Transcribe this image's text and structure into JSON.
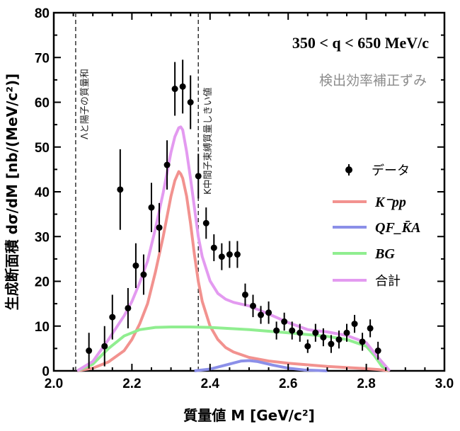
{
  "chart_data": {
    "type": "scatter",
    "title": "",
    "xlabel": "質量値 M [GeV/c²]",
    "ylabel": "生成断面積 dσ/dM [nb/(MeV/c²)]",
    "xlim": [
      2.0,
      3.0
    ],
    "ylim": [
      0,
      80
    ],
    "x_ticks": [
      "2.0",
      "2.2",
      "2.4",
      "2.6",
      "2.8",
      "3.0"
    ],
    "y_ticks": [
      "0",
      "10",
      "20",
      "30",
      "40",
      "50",
      "60",
      "70",
      "80"
    ],
    "grid": false,
    "legend_position": "right",
    "annotations": {
      "range": "350 < q < 650 MeV/c",
      "efficiency_note": "検出効率補正ずみ"
    },
    "vertical_lines": [
      {
        "x": 2.056,
        "label": "Λと陽子の質量和"
      },
      {
        "x": 2.37,
        "label": "K中間子束縛質量しきい値"
      }
    ],
    "series": [
      {
        "name": "データ",
        "kind": "points",
        "color": "#000000",
        "points": [
          {
            "x": 2.09,
            "y": 4.5,
            "err": 4.0
          },
          {
            "x": 2.13,
            "y": 5.5,
            "err": 4.5
          },
          {
            "x": 2.15,
            "y": 12.0,
            "err": 5.0
          },
          {
            "x": 2.17,
            "y": 40.5,
            "err": 9.0
          },
          {
            "x": 2.19,
            "y": 14.0,
            "err": 4.5
          },
          {
            "x": 2.21,
            "y": 23.5,
            "err": 5.0
          },
          {
            "x": 2.23,
            "y": 21.5,
            "err": 4.5
          },
          {
            "x": 2.25,
            "y": 36.5,
            "err": 5.5
          },
          {
            "x": 2.27,
            "y": 32.0,
            "err": 5.5
          },
          {
            "x": 2.29,
            "y": 46.0,
            "err": 5.5
          },
          {
            "x": 2.31,
            "y": 63.0,
            "err": 6.0
          },
          {
            "x": 2.33,
            "y": 63.5,
            "err": 6.0
          },
          {
            "x": 2.35,
            "y": 60.0,
            "err": 6.0
          },
          {
            "x": 2.37,
            "y": 43.5,
            "err": 5.0
          },
          {
            "x": 2.39,
            "y": 33.0,
            "err": 3.5
          },
          {
            "x": 2.41,
            "y": 27.5,
            "err": 3.0
          },
          {
            "x": 2.43,
            "y": 25.5,
            "err": 3.0
          },
          {
            "x": 2.45,
            "y": 26.0,
            "err": 3.0
          },
          {
            "x": 2.47,
            "y": 26.0,
            "err": 3.0
          },
          {
            "x": 2.49,
            "y": 17.0,
            "err": 2.5
          },
          {
            "x": 2.51,
            "y": 14.5,
            "err": 2.5
          },
          {
            "x": 2.53,
            "y": 12.5,
            "err": 2.0
          },
          {
            "x": 2.55,
            "y": 13.0,
            "err": 2.5
          },
          {
            "x": 2.57,
            "y": 9.0,
            "err": 2.0
          },
          {
            "x": 2.59,
            "y": 11.0,
            "err": 2.0
          },
          {
            "x": 2.61,
            "y": 9.0,
            "err": 2.0
          },
          {
            "x": 2.63,
            "y": 8.5,
            "err": 2.0
          },
          {
            "x": 2.65,
            "y": 5.5,
            "err": 1.5
          },
          {
            "x": 2.67,
            "y": 8.5,
            "err": 2.0
          },
          {
            "x": 2.69,
            "y": 7.5,
            "err": 2.0
          },
          {
            "x": 2.71,
            "y": 6.0,
            "err": 2.0
          },
          {
            "x": 2.73,
            "y": 7.0,
            "err": 2.0
          },
          {
            "x": 2.75,
            "y": 8.5,
            "err": 2.0
          },
          {
            "x": 2.77,
            "y": 10.5,
            "err": 2.0
          },
          {
            "x": 2.79,
            "y": 6.5,
            "err": 2.0
          },
          {
            "x": 2.81,
            "y": 9.5,
            "err": 2.0
          },
          {
            "x": 2.83,
            "y": 4.5,
            "err": 2.0
          }
        ]
      },
      {
        "name": "K⁻pp",
        "kind": "line",
        "color": "#f2928f",
        "x": [
          2.06,
          2.1,
          2.14,
          2.18,
          2.2,
          2.22,
          2.24,
          2.26,
          2.28,
          2.3,
          2.31,
          2.32,
          2.325,
          2.33,
          2.34,
          2.35,
          2.36,
          2.37,
          2.38,
          2.4,
          2.42,
          2.44,
          2.46,
          2.5,
          2.55,
          2.6,
          2.7,
          2.78,
          2.83,
          2.86
        ],
        "y": [
          0,
          0.6,
          2.0,
          4.5,
          7.0,
          10.5,
          15.0,
          22.0,
          30.0,
          39.0,
          42.5,
          44.5,
          44.0,
          43.0,
          39.0,
          33.0,
          26.0,
          20.0,
          15.5,
          10.0,
          7.0,
          5.2,
          4.2,
          3.0,
          2.2,
          1.7,
          1.0,
          0.6,
          0.3,
          0
        ]
      },
      {
        "name": "QF_K̄A",
        "kind": "line",
        "color": "#8b8fe8",
        "x": [
          2.36,
          2.4,
          2.44,
          2.48,
          2.5,
          2.52,
          2.56,
          2.6,
          2.64,
          2.7
        ],
        "y": [
          0,
          0.4,
          1.3,
          2.2,
          2.3,
          2.1,
          1.3,
          0.6,
          0.2,
          0
        ]
      },
      {
        "name": "BG",
        "kind": "line",
        "color": "#90ee90",
        "x": [
          2.06,
          2.1,
          2.14,
          2.18,
          2.22,
          2.26,
          2.3,
          2.35,
          2.4,
          2.5,
          2.6,
          2.7,
          2.75,
          2.8,
          2.82,
          2.84,
          2.86
        ],
        "y": [
          0,
          1.5,
          5.0,
          7.8,
          9.2,
          9.7,
          9.8,
          9.8,
          9.7,
          9.2,
          8.5,
          7.7,
          7.0,
          5.5,
          3.5,
          1.0,
          0
        ]
      },
      {
        "name": "合計",
        "kind": "line",
        "color": "#e39af0",
        "x": [
          2.06,
          2.1,
          2.14,
          2.18,
          2.2,
          2.22,
          2.24,
          2.26,
          2.28,
          2.3,
          2.31,
          2.32,
          2.325,
          2.33,
          2.34,
          2.35,
          2.36,
          2.37,
          2.38,
          2.4,
          2.42,
          2.44,
          2.46,
          2.5,
          2.55,
          2.6,
          2.65,
          2.7,
          2.75,
          2.8,
          2.83,
          2.86
        ],
        "y": [
          0,
          2.1,
          7.0,
          12.3,
          15.5,
          19.7,
          24.5,
          31.7,
          39.8,
          48.8,
          52.3,
          54.3,
          54.5,
          53.8,
          49.0,
          43.0,
          36.5,
          30.0,
          25.5,
          20.1,
          17.3,
          16.0,
          15.3,
          14.5,
          12.7,
          10.8,
          9.2,
          8.7,
          7.9,
          6.3,
          3.0,
          0
        ]
      }
    ]
  }
}
